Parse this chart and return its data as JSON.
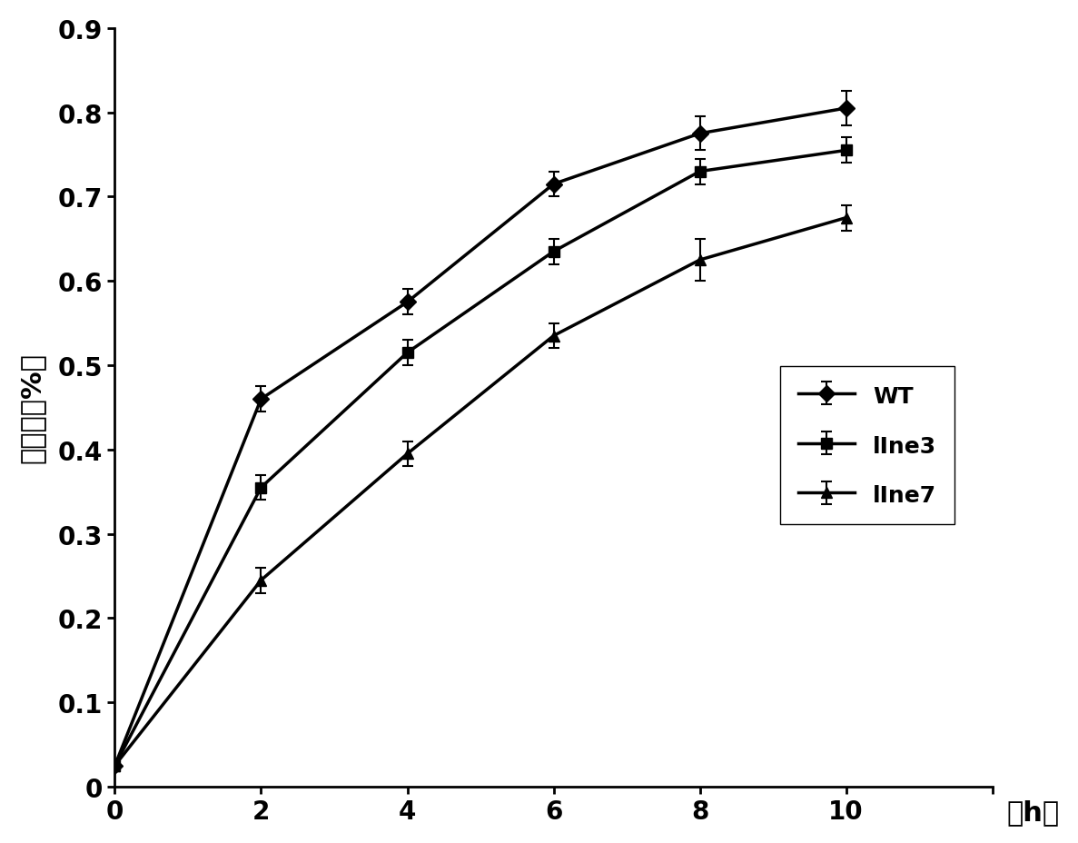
{
  "x": [
    0,
    2,
    4,
    6,
    8,
    10
  ],
  "WT": [
    0.025,
    0.46,
    0.575,
    0.715,
    0.775,
    0.805
  ],
  "WT_err": [
    0.005,
    0.015,
    0.015,
    0.015,
    0.02,
    0.02
  ],
  "line3": [
    0.025,
    0.355,
    0.515,
    0.635,
    0.73,
    0.755
  ],
  "line3_err": [
    0.005,
    0.015,
    0.015,
    0.015,
    0.015,
    0.015
  ],
  "line7": [
    0.025,
    0.245,
    0.395,
    0.535,
    0.625,
    0.675
  ],
  "line7_err": [
    0.005,
    0.015,
    0.015,
    0.015,
    0.025,
    0.015
  ],
  "xlabel": "（h）",
  "ylabel": "失水率（%）",
  "xlim": [
    0,
    12
  ],
  "ylim": [
    0,
    0.9
  ],
  "xticks": [
    0,
    2,
    4,
    6,
    8,
    10,
    12
  ],
  "yticks": [
    0,
    0.1,
    0.2,
    0.3,
    0.4,
    0.5,
    0.6,
    0.7,
    0.8,
    0.9
  ],
  "line_color": "#000000",
  "legend_labels": [
    "WT",
    "lIne3",
    "lIne7"
  ],
  "fontsize_ticks": 20,
  "fontsize_label": 22,
  "fontsize_legend": 18
}
